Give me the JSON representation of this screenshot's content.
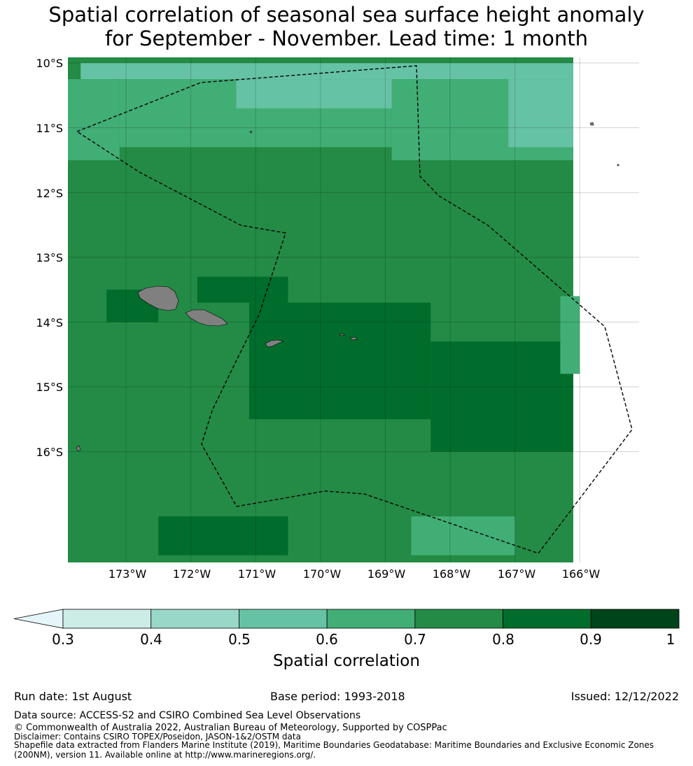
{
  "title_line1": "Spatial correlation of seasonal sea surface height anomaly",
  "title_line2": "for September - November. Lead time: 1 month",
  "lat_labels": [
    "10°S",
    "11°S",
    "12°S",
    "13°S",
    "14°S",
    "15°S",
    "16°S"
  ],
  "lon_labels": [
    "173°W",
    "172°W",
    "171°W",
    "170°W",
    "169°W",
    "168°W",
    "167°W",
    "166°W"
  ],
  "colorbar": {
    "ticks": [
      "0.3",
      "0.4",
      "0.5",
      "0.6",
      "0.7",
      "0.8",
      "0.9",
      "1"
    ],
    "label": "Spatial correlation",
    "colors": [
      "#e5f5f9",
      "#ccece6",
      "#99d8c9",
      "#66c2a4",
      "#41ae76",
      "#238b45",
      "#006d2c",
      "#00441b"
    ]
  },
  "chart_data": {
    "type": "heatmap",
    "title": "Spatial correlation of seasonal sea surface height anomaly for September - November. Lead time: 1 month",
    "x_range_deg_lon": [
      -173.9,
      -166.1
    ],
    "y_range_deg_lat": [
      -17.8,
      -9.9
    ],
    "value_range": [
      0.3,
      1.0
    ],
    "colorbar_label": "Spatial correlation",
    "regions": [
      {
        "lon": [
          -173.9,
          -166.1
        ],
        "lat": [
          -17.8,
          -9.9
        ],
        "value": 0.75
      },
      {
        "lon": [
          -173.7,
          -166.1
        ],
        "lat": [
          -10.25,
          -10.0
        ],
        "value": 0.55
      },
      {
        "lon": [
          -173.9,
          -173.1
        ],
        "lat": [
          -11.5,
          -10.25
        ],
        "value": 0.65
      },
      {
        "lon": [
          -173.1,
          -168.9
        ],
        "lat": [
          -11.3,
          -10.25
        ],
        "value": 0.65
      },
      {
        "lon": [
          -168.9,
          -166.1
        ],
        "lat": [
          -11.5,
          -10.25
        ],
        "value": 0.65
      },
      {
        "lon": [
          -171.3,
          -168.9
        ],
        "lat": [
          -10.7,
          -10.25
        ],
        "value": 0.55
      },
      {
        "lon": [
          -167.1,
          -166.1
        ],
        "lat": [
          -11.3,
          -10.25
        ],
        "value": 0.55
      },
      {
        "lon": [
          -171.9,
          -170.5
        ],
        "lat": [
          -13.7,
          -13.3
        ],
        "value": 0.85
      },
      {
        "lon": [
          -171.1,
          -168.3
        ],
        "lat": [
          -15.5,
          -13.7
        ],
        "value": 0.85
      },
      {
        "lon": [
          -168.3,
          -166.1
        ],
        "lat": [
          -16.0,
          -14.3
        ],
        "value": 0.85
      },
      {
        "lon": [
          -173.3,
          -172.5
        ],
        "lat": [
          -14.0,
          -13.5
        ],
        "value": 0.85
      },
      {
        "lon": [
          -172.5,
          -170.5
        ],
        "lat": [
          -17.6,
          -17.0
        ],
        "value": 0.85
      },
      {
        "lon": [
          -168.6,
          -167.0
        ],
        "lat": [
          -17.6,
          -17.0
        ],
        "value": 0.65
      },
      {
        "lon": [
          -166.3,
          -166.0
        ],
        "lat": [
          -14.8,
          -13.6
        ],
        "value": 0.65
      }
    ],
    "features": [
      "land masses (grey)",
      "dashed maritime boundary (EEZ)"
    ]
  },
  "footer": {
    "run_date": "Run date: 1st August",
    "base_period": "Base period: 1993-2018",
    "issued": "Issued: 12/12/2022",
    "data_source": "Data source: ACCESS-S2 and CSIRO Combined Sea Level Observations",
    "copyright": "© Commonwealth of Australia 2022, Australian Bureau of Meteorology, Supported by COSPPac",
    "disclaimer": "Disclaimer: Contains CSIRO TOPEX/Poseidon, JASON-1&2/OSTM data",
    "shapefile_line1": "Shapefile data extracted from Flanders Marine Institute (2019), Maritime Boundaries Geodatabase: Maritime Boundaries and Exclusive Economic Zones",
    "shapefile_line2": "(200NM), version 11. Available online at http://www.marineregions.org/."
  },
  "colors": {
    "land": "#808080",
    "boundary": "#000000"
  }
}
